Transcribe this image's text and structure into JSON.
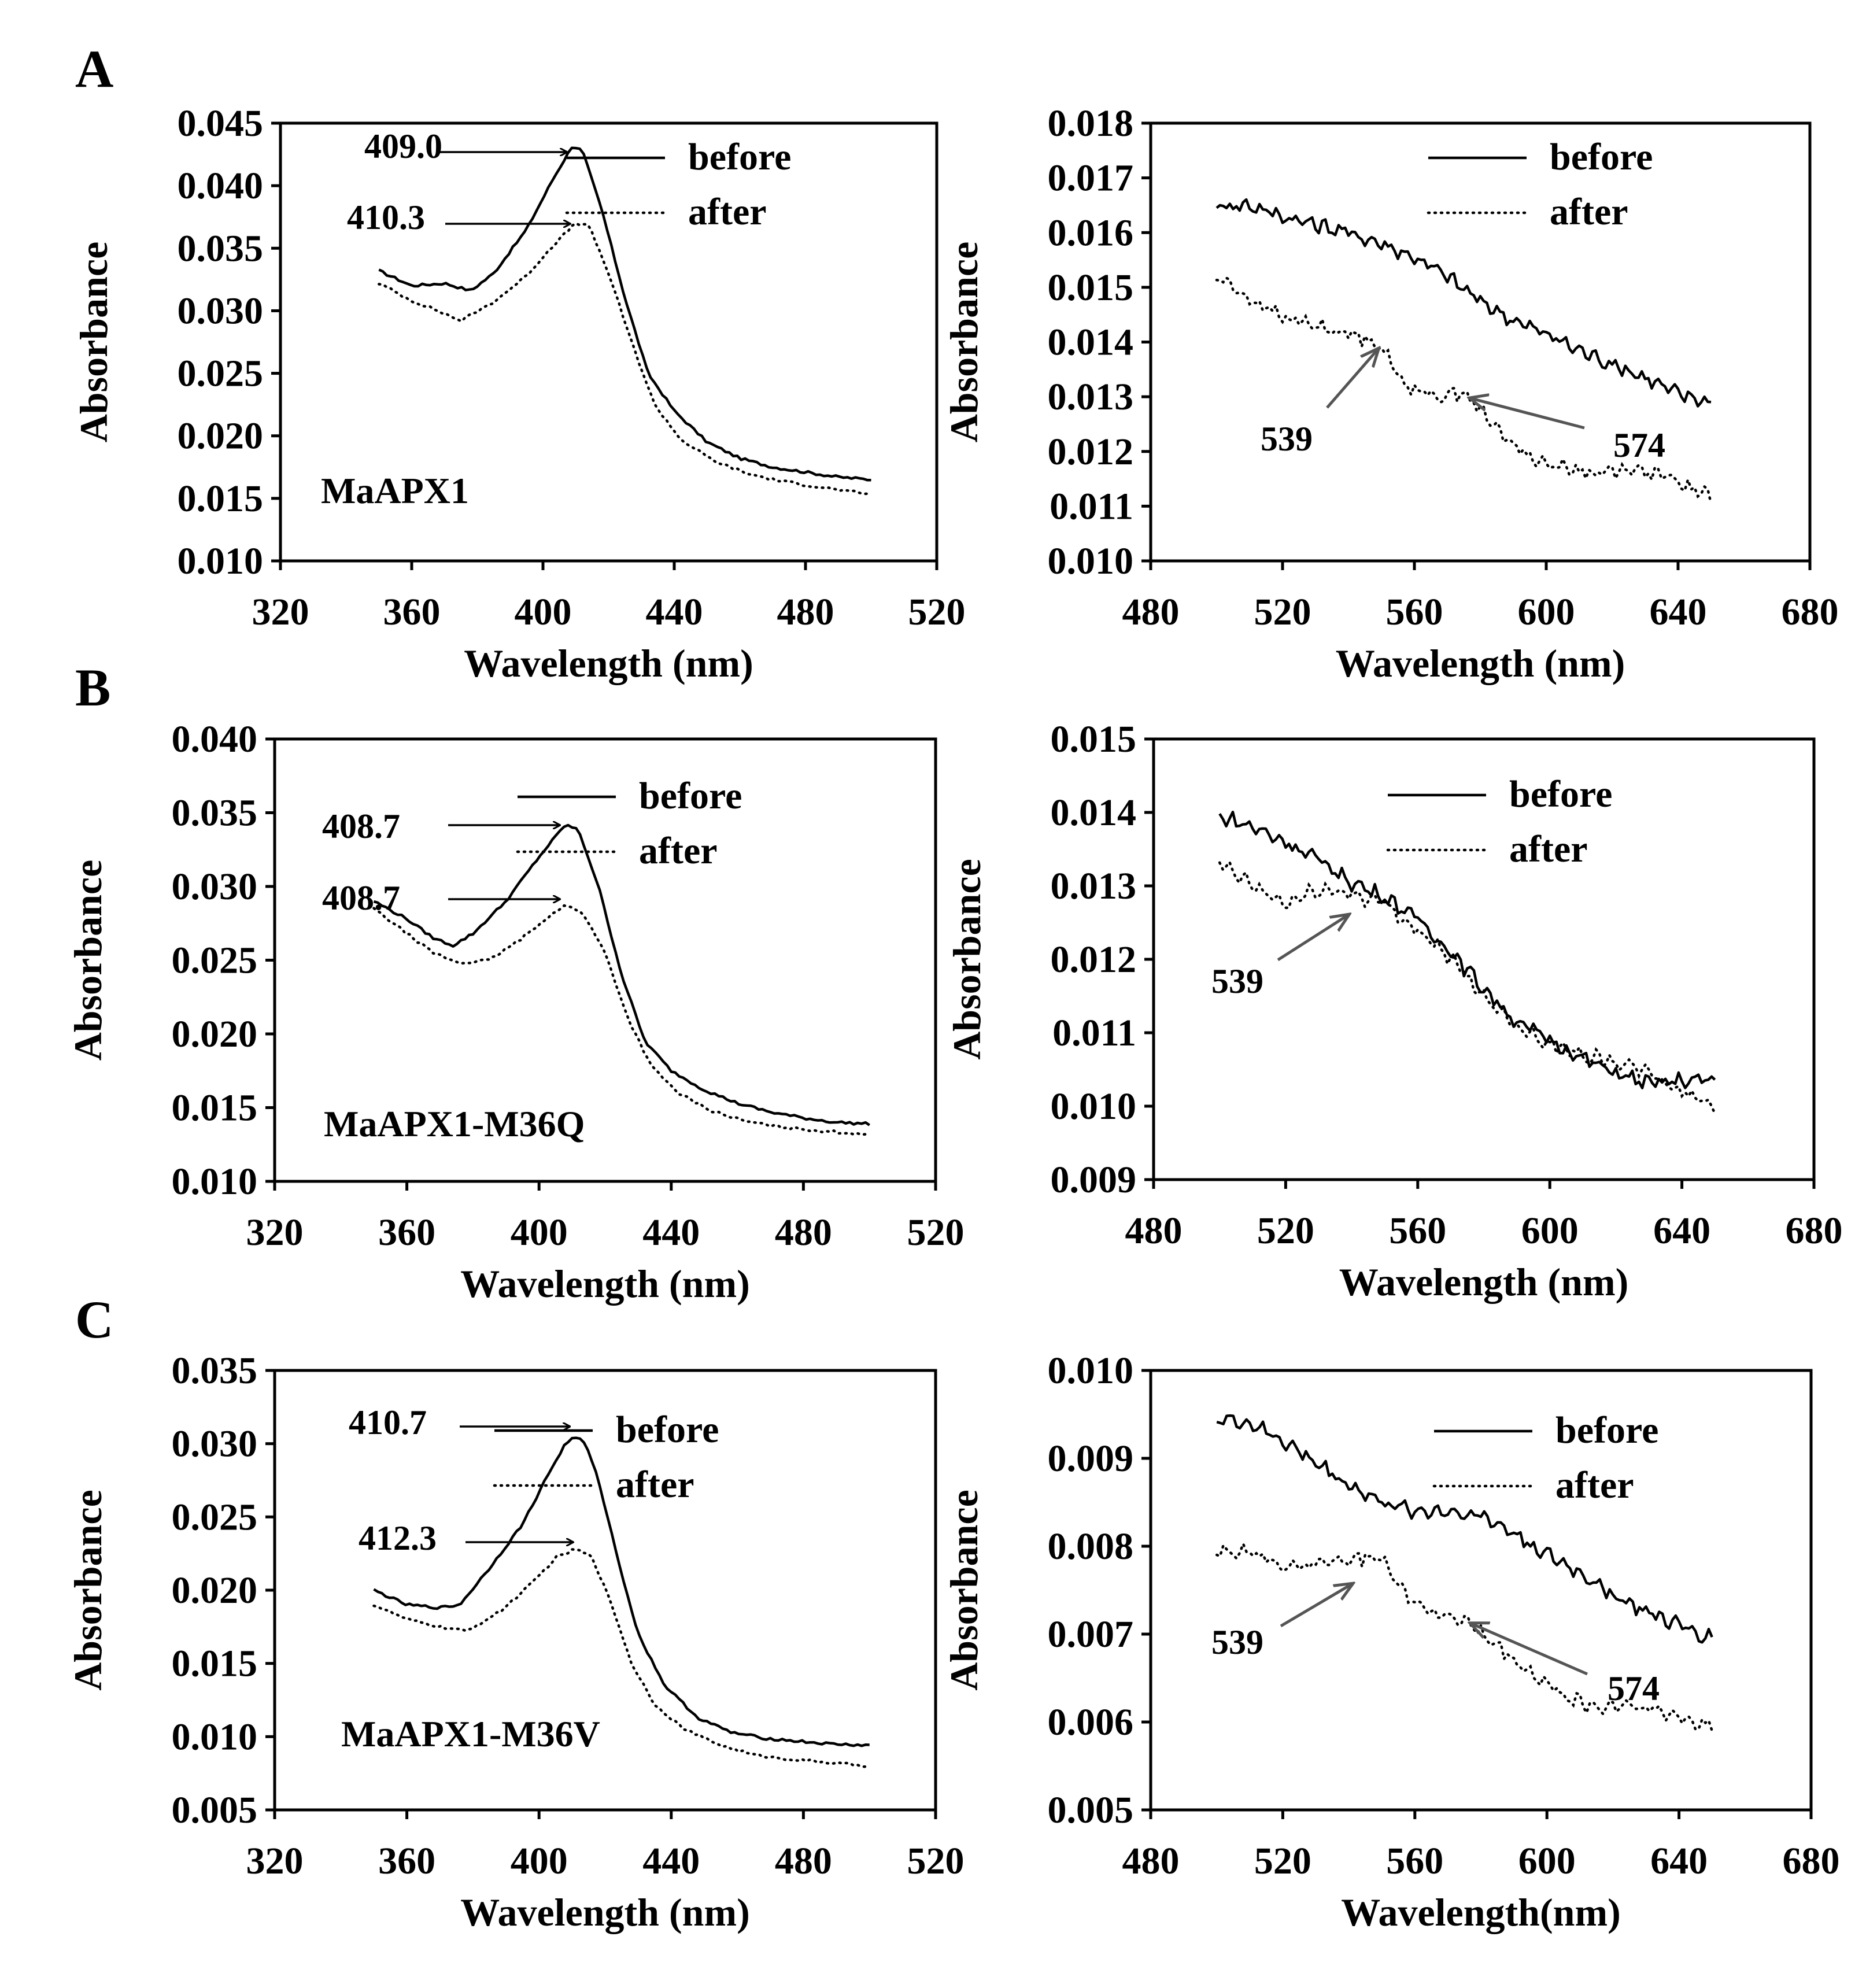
{
  "chart_data": [
    {
      "id": "A-soret",
      "type": "line",
      "panel_letter": "A",
      "sample_label": "MaAPX1",
      "xlabel": "Wavelength (nm)",
      "ylabel": "Absorbance",
      "xlim": [
        320,
        520
      ],
      "ylim": [
        0.01,
        0.045
      ],
      "x_ticks": [
        320,
        360,
        400,
        440,
        480,
        520
      ],
      "y_ticks": [
        0.01,
        0.015,
        0.02,
        0.025,
        0.03,
        0.035,
        0.04,
        0.045
      ],
      "y_tick_labels": [
        "0.010",
        "0.015",
        "0.020",
        "0.025",
        "0.030",
        "0.035",
        "0.040",
        "0.045"
      ],
      "legend": [
        "before",
        "after"
      ],
      "series": [
        {
          "name": "before",
          "style": "solid",
          "x": [
            350,
            360,
            370,
            378,
            385,
            395,
            403,
            409,
            412,
            418,
            425,
            432,
            440,
            450,
            460,
            470,
            480,
            490,
            500
          ],
          "values": [
            0.0332,
            0.032,
            0.0322,
            0.0316,
            0.033,
            0.0365,
            0.0405,
            0.0432,
            0.0428,
            0.038,
            0.031,
            0.025,
            0.022,
            0.0195,
            0.0182,
            0.0175,
            0.0171,
            0.0167,
            0.0165
          ]
        },
        {
          "name": "after",
          "style": "dotted",
          "x": [
            350,
            360,
            368,
            375,
            385,
            395,
            403,
            410,
            414,
            420,
            427,
            434,
            442,
            452,
            462,
            472,
            482,
            492,
            500
          ],
          "values": [
            0.0322,
            0.0308,
            0.03,
            0.0292,
            0.0307,
            0.0328,
            0.0352,
            0.037,
            0.0368,
            0.033,
            0.0275,
            0.0225,
            0.0197,
            0.018,
            0.017,
            0.0164,
            0.016,
            0.0156,
            0.0153
          ]
        }
      ],
      "annotations": [
        {
          "text": "409.0",
          "x": 409,
          "y": 0.0432
        },
        {
          "text": "410.3",
          "x": 410,
          "y": 0.037
        }
      ]
    },
    {
      "id": "A-qband",
      "type": "line",
      "xlabel": "Wavelength (nm)",
      "ylabel": "Absorbance",
      "xlim": [
        480,
        680
      ],
      "ylim": [
        0.01,
        0.018
      ],
      "x_ticks": [
        480,
        520,
        560,
        600,
        640,
        680
      ],
      "y_ticks": [
        0.01,
        0.011,
        0.012,
        0.013,
        0.014,
        0.015,
        0.016,
        0.017,
        0.018
      ],
      "y_tick_labels": [
        "0.010",
        "0.011",
        "0.012",
        "0.013",
        "0.014",
        "0.015",
        "0.016",
        "0.017",
        "0.018"
      ],
      "legend": [
        "before",
        "after"
      ],
      "series": [
        {
          "name": "before",
          "style": "solid",
          "x": [
            500,
            510,
            520,
            530,
            540,
            550,
            560,
            570,
            580,
            590,
            600,
            610,
            620,
            630,
            640,
            650
          ],
          "values": [
            0.0165,
            0.0165,
            0.0163,
            0.01615,
            0.016,
            0.0158,
            0.01555,
            0.0152,
            0.01475,
            0.0144,
            0.01415,
            0.01385,
            0.0136,
            0.01335,
            0.01305,
            0.0129
          ]
        },
        {
          "name": "after",
          "style": "dotted",
          "x": [
            500,
            510,
            520,
            530,
            540,
            549,
            556,
            565,
            575,
            585,
            595,
            605,
            615,
            625,
            635,
            645,
            650
          ],
          "values": [
            0.0152,
            0.0148,
            0.01445,
            0.0143,
            0.01415,
            0.014,
            0.0133,
            0.013,
            0.0131,
            0.0124,
            0.0119,
            0.0117,
            0.0116,
            0.0117,
            0.01155,
            0.0113,
            0.0112
          ]
        }
      ],
      "annotations": [
        {
          "text": "539",
          "x": 549,
          "y": 0.014
        },
        {
          "text": "574",
          "x": 577,
          "y": 0.0131
        }
      ]
    },
    {
      "id": "B-soret",
      "type": "line",
      "panel_letter": "B",
      "sample_label": "MaAPX1-M36Q",
      "xlabel": "Wavelength  (nm)",
      "ylabel": "Absorbance",
      "xlim": [
        320,
        520
      ],
      "ylim": [
        0.01,
        0.04
      ],
      "x_ticks": [
        320,
        360,
        400,
        440,
        480,
        520
      ],
      "y_ticks": [
        0.01,
        0.015,
        0.02,
        0.025,
        0.03,
        0.035,
        0.04
      ],
      "y_tick_labels": [
        "0.010",
        "0.015",
        "0.020",
        "0.025",
        "0.030",
        "0.035",
        "0.040"
      ],
      "legend": [
        "before",
        "after"
      ],
      "series": [
        {
          "name": "before",
          "style": "solid",
          "x": [
            350,
            360,
            368,
            374,
            380,
            390,
            400,
            408,
            412,
            418,
            425,
            432,
            440,
            450,
            460,
            470,
            480,
            490,
            500
          ],
          "values": [
            0.029,
            0.0278,
            0.0265,
            0.026,
            0.0268,
            0.029,
            0.032,
            0.0342,
            0.0338,
            0.03,
            0.024,
            0.0195,
            0.0175,
            0.0162,
            0.0153,
            0.0147,
            0.0143,
            0.014,
            0.0139
          ]
        },
        {
          "name": "after",
          "style": "dotted",
          "x": [
            350,
            360,
            368,
            376,
            385,
            395,
            403,
            408,
            413,
            420,
            427,
            434,
            442,
            452,
            462,
            472,
            482,
            492,
            500
          ],
          "values": [
            0.0285,
            0.0268,
            0.0255,
            0.0248,
            0.025,
            0.0265,
            0.028,
            0.0287,
            0.0283,
            0.0255,
            0.021,
            0.0178,
            0.016,
            0.0148,
            0.0141,
            0.0137,
            0.0135,
            0.0133,
            0.0132
          ]
        }
      ],
      "annotations": [
        {
          "text": "408.7",
          "x": 408,
          "y": 0.0342
        },
        {
          "text": "408.7",
          "x": 408,
          "y": 0.0287
        }
      ]
    },
    {
      "id": "B-qband",
      "type": "line",
      "xlabel": "Wavelength (nm)",
      "ylabel": "Absorbance",
      "xlim": [
        480,
        680
      ],
      "ylim": [
        0.009,
        0.015
      ],
      "x_ticks": [
        480,
        520,
        560,
        600,
        640,
        680
      ],
      "y_ticks": [
        0.009,
        0.01,
        0.011,
        0.012,
        0.013,
        0.014,
        0.015
      ],
      "y_tick_labels": [
        "0.009",
        "0.010",
        "0.011",
        "0.012",
        "0.013",
        "0.014",
        "0.015"
      ],
      "legend": [
        "before",
        "after"
      ],
      "series": [
        {
          "name": "before",
          "style": "solid",
          "x": [
            500,
            510,
            520,
            530,
            540,
            550,
            560,
            570,
            580,
            590,
            600,
            610,
            620,
            630,
            640,
            650
          ],
          "values": [
            0.01395,
            0.0138,
            0.0136,
            0.01335,
            0.01305,
            0.01285,
            0.01255,
            0.0121,
            0.0116,
            0.01115,
            0.0109,
            0.01065,
            0.01045,
            0.0103,
            0.01035,
            0.01035
          ]
        },
        {
          "name": "after",
          "style": "dotted",
          "x": [
            500,
            510,
            520,
            530,
            540,
            550,
            560,
            570,
            580,
            590,
            600,
            610,
            620,
            630,
            640,
            650
          ],
          "values": [
            0.0133,
            0.013,
            0.01275,
            0.01295,
            0.0129,
            0.01275,
            0.0124,
            0.012,
            0.0115,
            0.0111,
            0.01085,
            0.0107,
            0.0106,
            0.01045,
            0.0102,
            0.01
          ]
        }
      ],
      "annotations": [
        {
          "text": "539",
          "x": 539,
          "y": 0.0127
        }
      ]
    },
    {
      "id": "C-soret",
      "type": "line",
      "panel_letter": "C",
      "sample_label": "MaAPX1-M36V",
      "xlabel": "Wavelength (nm)",
      "ylabel": "Absorbance",
      "xlim": [
        320,
        520
      ],
      "ylim": [
        0.005,
        0.035
      ],
      "x_ticks": [
        320,
        360,
        400,
        440,
        480,
        520
      ],
      "y_ticks": [
        0.005,
        0.01,
        0.015,
        0.02,
        0.025,
        0.03,
        0.035
      ],
      "y_tick_labels": [
        "0.005",
        "0.010",
        "0.015",
        "0.020",
        "0.025",
        "0.030",
        "0.035"
      ],
      "legend": [
        "before",
        "after"
      ],
      "series": [
        {
          "name": "before",
          "style": "solid",
          "x": [
            350,
            360,
            370,
            376,
            385,
            395,
            403,
            408,
            411,
            414,
            418,
            424,
            430,
            438,
            448,
            458,
            468,
            478,
            488,
            500
          ],
          "values": [
            0.02,
            0.019,
            0.0188,
            0.019,
            0.0215,
            0.0245,
            0.028,
            0.03,
            0.0305,
            0.03,
            0.0275,
            0.022,
            0.017,
            0.0135,
            0.0113,
            0.0103,
            0.0099,
            0.0097,
            0.0095,
            0.0094
          ]
        },
        {
          "name": "after",
          "style": "dotted",
          "x": [
            350,
            360,
            370,
            378,
            388,
            398,
            405,
            411,
            416,
            422,
            428,
            435,
            444,
            454,
            464,
            474,
            484,
            494,
            500
          ],
          "values": [
            0.019,
            0.018,
            0.0175,
            0.0172,
            0.0185,
            0.0205,
            0.0222,
            0.0228,
            0.0223,
            0.019,
            0.015,
            0.0122,
            0.0105,
            0.0095,
            0.0088,
            0.0085,
            0.0083,
            0.0081,
            0.008
          ]
        }
      ],
      "annotations": [
        {
          "text": "410.7",
          "x": 411,
          "y": 0.0305
        },
        {
          "text": "412.3",
          "x": 412,
          "y": 0.0228
        }
      ]
    },
    {
      "id": "C-qband",
      "type": "line",
      "xlabel": "Wavelength(nm)",
      "ylabel": "Absorbance",
      "xlim": [
        480,
        680
      ],
      "ylim": [
        0.005,
        0.01
      ],
      "x_ticks": [
        480,
        520,
        560,
        600,
        640,
        680
      ],
      "y_ticks": [
        0.005,
        0.006,
        0.007,
        0.008,
        0.009,
        0.01
      ],
      "y_tick_labels": [
        "0.005",
        "0.006",
        "0.007",
        "0.008",
        "0.009",
        "0.010"
      ],
      "legend": [
        "before",
        "after"
      ],
      "series": [
        {
          "name": "before",
          "style": "solid",
          "x": [
            500,
            510,
            520,
            530,
            540,
            550,
            560,
            570,
            580,
            590,
            600,
            610,
            620,
            630,
            640,
            650
          ],
          "values": [
            0.00945,
            0.0094,
            0.0092,
            0.00895,
            0.0087,
            0.0085,
            0.0084,
            0.0084,
            0.00835,
            0.00815,
            0.0079,
            0.0077,
            0.00745,
            0.00725,
            0.0071,
            0.00695
          ]
        },
        {
          "name": "after",
          "style": "dotted",
          "x": [
            500,
            510,
            520,
            530,
            540,
            550,
            556,
            565,
            575,
            585,
            595,
            605,
            615,
            625,
            635,
            645,
            650
          ],
          "values": [
            0.00795,
            0.00795,
            0.00775,
            0.0078,
            0.00785,
            0.0079,
            0.0075,
            0.00725,
            0.00715,
            0.00685,
            0.00655,
            0.0063,
            0.00615,
            0.0062,
            0.0061,
            0.006,
            0.00598
          ]
        }
      ],
      "annotations": [
        {
          "text": "539",
          "x": 541,
          "y": 0.00765
        },
        {
          "text": "574",
          "x": 577,
          "y": 0.0072
        }
      ]
    }
  ]
}
